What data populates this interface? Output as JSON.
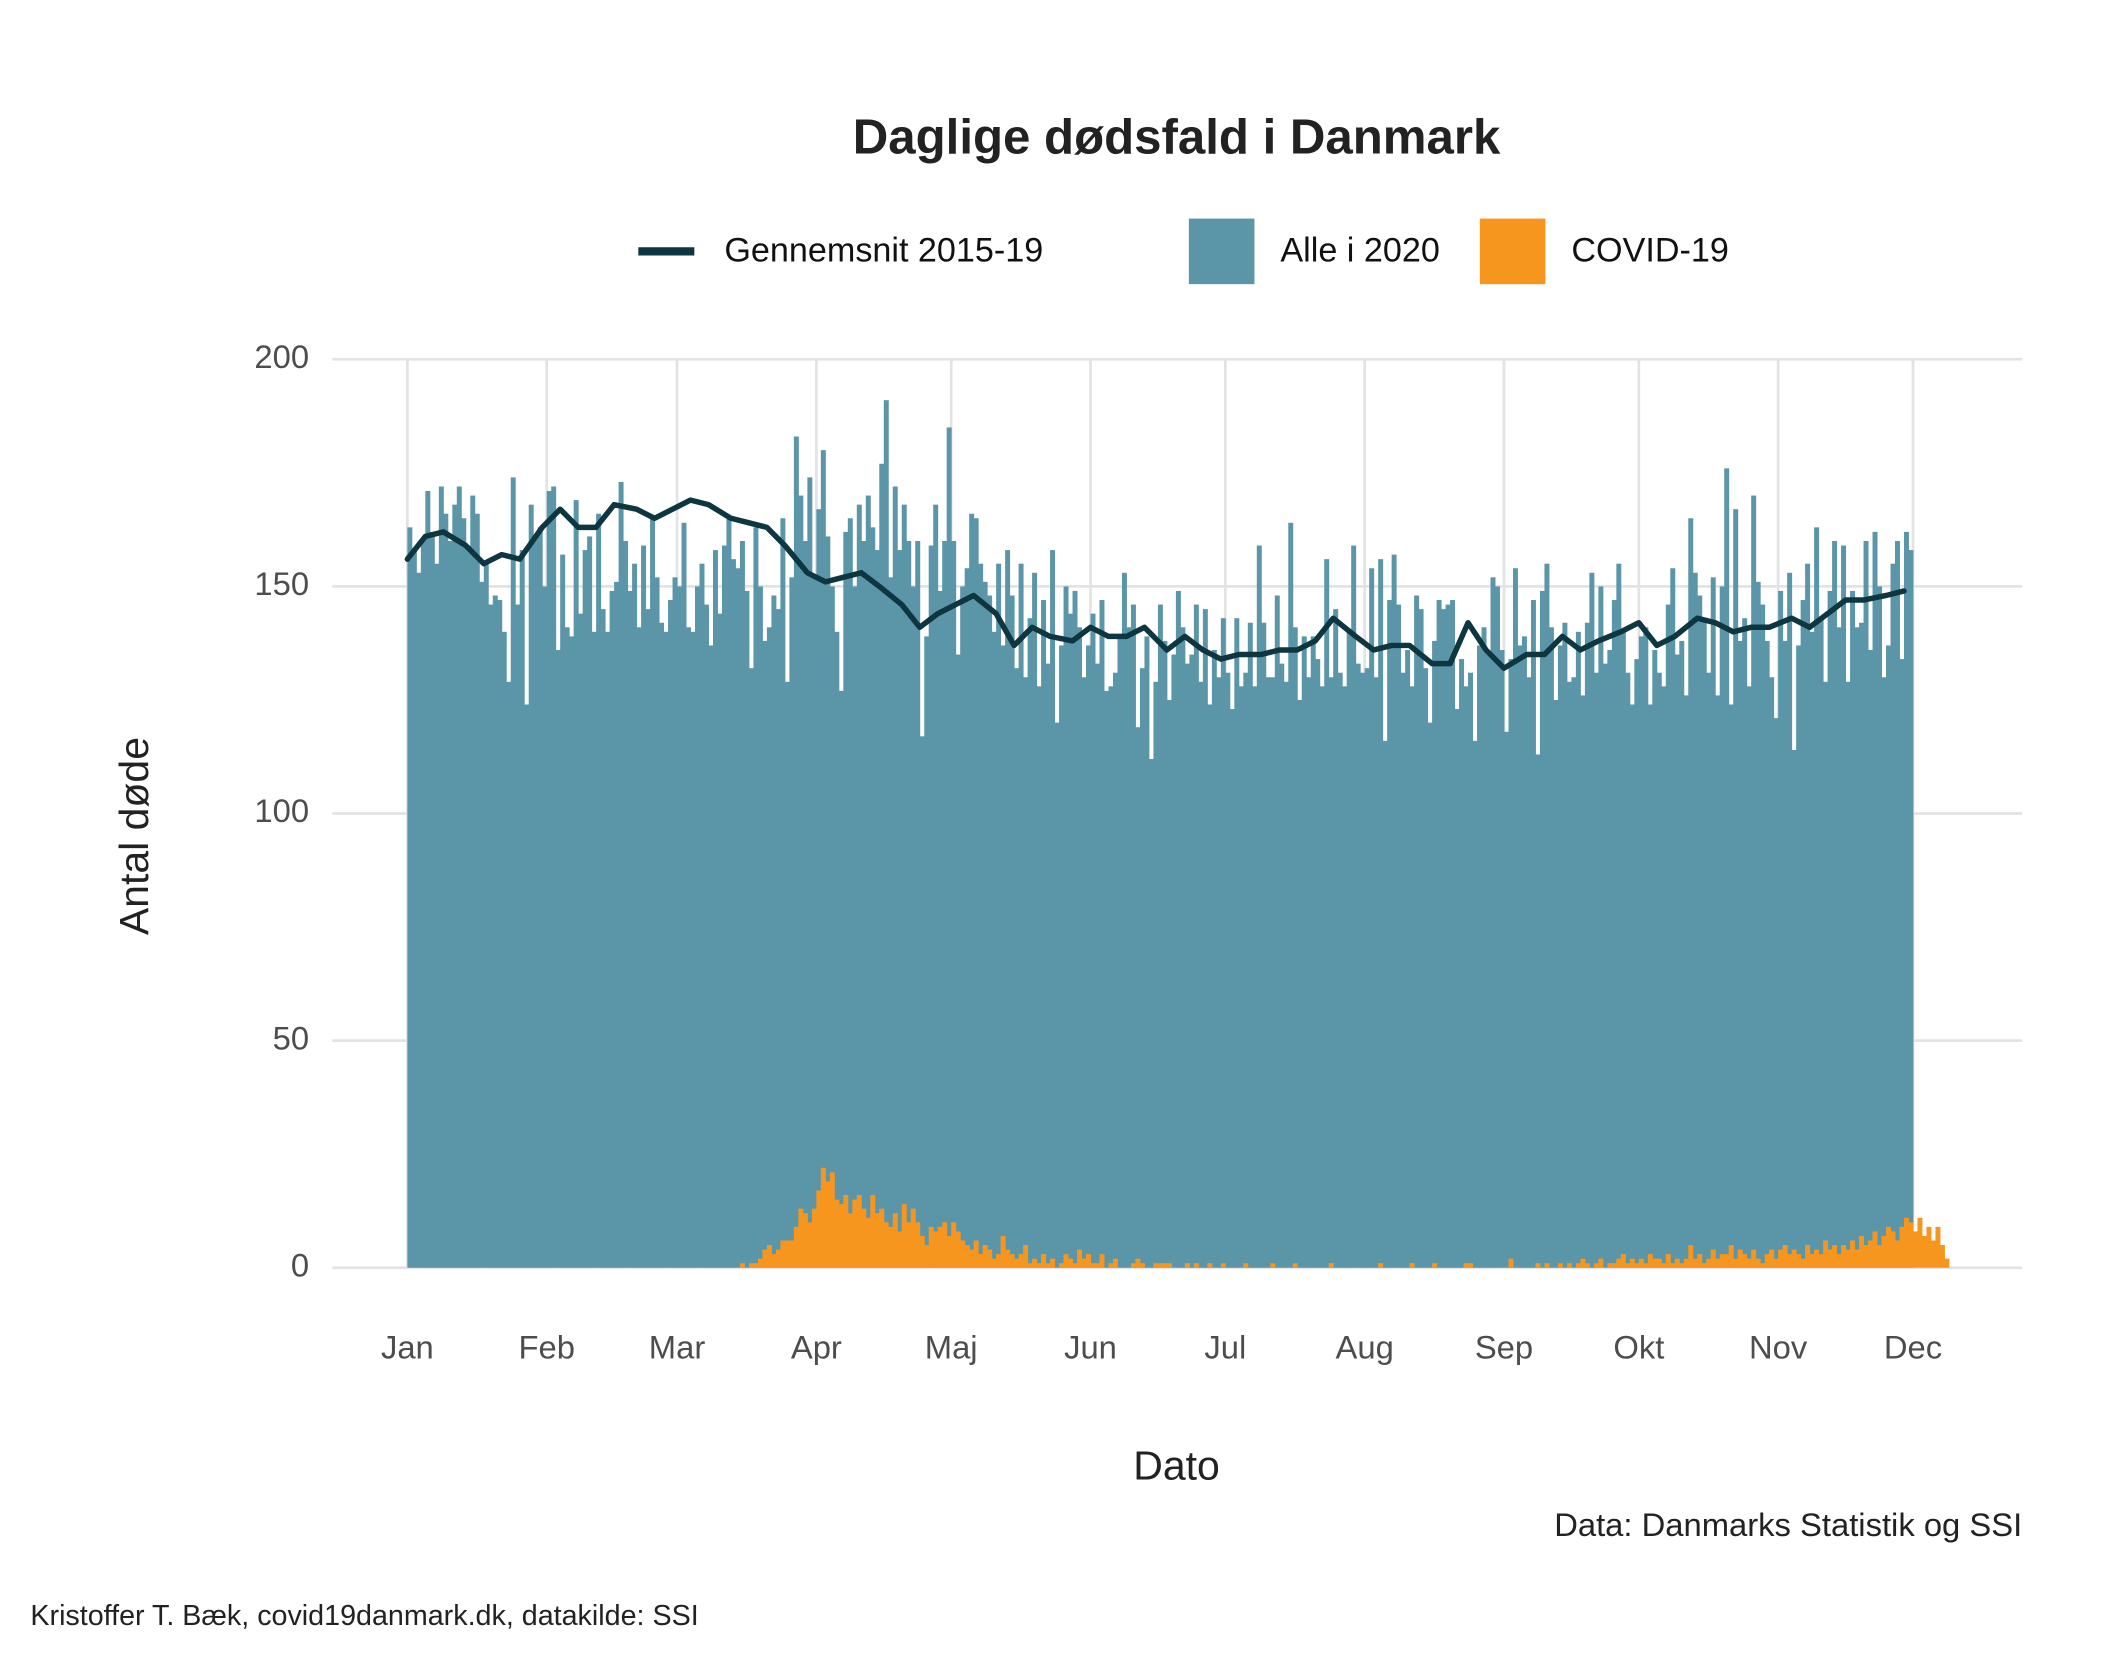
{
  "chart_data": {
    "type": "bar",
    "title": "Daglige dødsfald i Danmark",
    "x_label": "Dato",
    "y_label": "Antal døde",
    "caption": "Data: Danmarks Statistik og SSI",
    "footer": "Kristoffer T. Bæk, covid19danmark.dk, datakilde: SSI",
    "legend": "top",
    "grid": true,
    "xlim": [
      -16.7,
      359.3
    ],
    "ylim": [
      0,
      200
    ],
    "xticks": [
      {
        "value": 0,
        "label": "Jan"
      },
      {
        "value": 31,
        "label": "Feb"
      },
      {
        "value": 60,
        "label": "Mar"
      },
      {
        "value": 91,
        "label": "Apr"
      },
      {
        "value": 121,
        "label": "Maj"
      },
      {
        "value": 152,
        "label": "Jun"
      },
      {
        "value": 182,
        "label": "Jul"
      },
      {
        "value": 213,
        "label": "Aug"
      },
      {
        "value": 244,
        "label": "Sep"
      },
      {
        "value": 274,
        "label": "Okt"
      },
      {
        "value": 305,
        "label": "Nov"
      },
      {
        "value": 335,
        "label": "Dec"
      }
    ],
    "yticks": [
      0,
      50,
      100,
      150,
      200
    ],
    "x": [
      0,
      1,
      2,
      3,
      4,
      5,
      6,
      7,
      8,
      9,
      10,
      11,
      12,
      13,
      14,
      15,
      16,
      17,
      18,
      19,
      20,
      21,
      22,
      23,
      24,
      25,
      26,
      27,
      28,
      29,
      30,
      31,
      32,
      33,
      34,
      35,
      36,
      37,
      38,
      39,
      40,
      41,
      42,
      43,
      44,
      45,
      46,
      47,
      48,
      49,
      50,
      51,
      52,
      53,
      54,
      55,
      56,
      57,
      58,
      59,
      60,
      61,
      62,
      63,
      64,
      65,
      66,
      67,
      68,
      69,
      70,
      71,
      72,
      73,
      74,
      75,
      76,
      77,
      78,
      79,
      80,
      81,
      82,
      83,
      84,
      85,
      86,
      87,
      88,
      89,
      90,
      91,
      92,
      93,
      94,
      95,
      96,
      97,
      98,
      99,
      100,
      101,
      102,
      103,
      104,
      105,
      106,
      107,
      108,
      109,
      110,
      111,
      112,
      113,
      114,
      115,
      116,
      117,
      118,
      119,
      120,
      121,
      122,
      123,
      124,
      125,
      126,
      127,
      128,
      129,
      130,
      131,
      132,
      133,
      134,
      135,
      136,
      137,
      138,
      139,
      140,
      141,
      142,
      143,
      144,
      145,
      146,
      147,
      148,
      149,
      150,
      151,
      152,
      153,
      154,
      155,
      156,
      157,
      158,
      159,
      160,
      161,
      162,
      163,
      164,
      165,
      166,
      167,
      168,
      169,
      170,
      171,
      172,
      173,
      174,
      175,
      176,
      177,
      178,
      179,
      180,
      181,
      182,
      183,
      184,
      185,
      186,
      187,
      188,
      189,
      190,
      191,
      192,
      193,
      194,
      195,
      196,
      197,
      198,
      199,
      200,
      201,
      202,
      203,
      204,
      205,
      206,
      207,
      208,
      209,
      210,
      211,
      212,
      213,
      214,
      215,
      216,
      217,
      218,
      219,
      220,
      221,
      222,
      223,
      224,
      225,
      226,
      227,
      228,
      229,
      230,
      231,
      232,
      233,
      234,
      235,
      236,
      237,
      238,
      239,
      240,
      241,
      242,
      243,
      244,
      245,
      246,
      247,
      248,
      249,
      250,
      251,
      252,
      253,
      254,
      255,
      256,
      257,
      258,
      259,
      260,
      261,
      262,
      263,
      264,
      265,
      266,
      267,
      268,
      269,
      270,
      271,
      272,
      273,
      274,
      275,
      276,
      277,
      278,
      279,
      280,
      281,
      282,
      283,
      284,
      285,
      286,
      287,
      288,
      289,
      290,
      291,
      292,
      293,
      294,
      295,
      296,
      297,
      298,
      299,
      300,
      301,
      302,
      303,
      304,
      305,
      306,
      307,
      308,
      309,
      310,
      311,
      312,
      313,
      314,
      315,
      316,
      317,
      318,
      319,
      320,
      321,
      322,
      323,
      324,
      325,
      326,
      327,
      328,
      329,
      330,
      331,
      332,
      333,
      334,
      335,
      336,
      337,
      338,
      339,
      340,
      341,
      342
    ],
    "series": [
      {
        "name": "Gennemsnit 2015-19",
        "type": "line",
        "color": "#0e3641",
        "x": [
          0,
          4,
          8,
          13,
          17,
          21,
          25,
          30,
          34,
          38,
          42,
          46,
          51,
          55,
          59,
          63,
          67,
          72,
          76,
          80,
          84,
          89,
          93,
          97,
          101,
          105,
          110,
          114,
          118,
          122,
          126,
          131,
          135,
          139,
          143,
          148,
          152,
          156,
          160,
          164,
          169,
          173,
          177,
          181,
          185,
          190,
          194,
          198,
          202,
          206,
          211,
          215,
          219,
          223,
          228,
          232,
          236,
          240,
          244,
          249,
          253,
          257,
          261,
          265,
          270,
          274,
          278,
          282,
          287,
          291,
          295,
          299,
          303,
          308,
          312,
          316,
          320,
          324,
          329,
          333
        ],
        "values": [
          156,
          161,
          162,
          159,
          155,
          157,
          156,
          163,
          167,
          163,
          163,
          168,
          167,
          165,
          167,
          169,
          168,
          165,
          164,
          163,
          159,
          153,
          151,
          152,
          153,
          150,
          146,
          141,
          144,
          146,
          148,
          144,
          137,
          141,
          139,
          138,
          141,
          139,
          139,
          141,
          136,
          139,
          136,
          134,
          135,
          135,
          136,
          136,
          138,
          143,
          139,
          136,
          137,
          137,
          133,
          133,
          142,
          136,
          132,
          135,
          135,
          139,
          136,
          138,
          140,
          142,
          137,
          139,
          143,
          142,
          140,
          141,
          141,
          143,
          141,
          144,
          147,
          147,
          148,
          149
        ]
      },
      {
        "name": "Alle i 2020",
        "type": "bar",
        "color": "#5b96a8",
        "values": [
          163,
          158,
          153,
          160,
          171,
          162,
          155,
          172,
          166,
          160,
          168,
          172,
          165,
          159,
          170,
          166,
          151,
          155,
          146,
          148,
          147,
          140,
          129,
          174,
          146,
          158,
          124,
          168,
          161,
          163,
          150,
          171,
          172,
          136,
          157,
          141,
          139,
          169,
          144,
          158,
          161,
          140,
          166,
          145,
          140,
          149,
          151,
          173,
          160,
          149,
          155,
          141,
          159,
          145,
          165,
          152,
          142,
          140,
          147,
          152,
          150,
          164,
          141,
          140,
          150,
          155,
          146,
          137,
          158,
          144,
          159,
          165,
          156,
          154,
          160,
          149,
          132,
          163,
          150,
          138,
          141,
          148,
          145,
          165,
          129,
          152,
          183,
          170,
          160,
          174,
          152,
          167,
          180,
          161,
          150,
          140,
          127,
          162,
          165,
          150,
          168,
          160,
          170,
          163,
          158,
          177,
          191,
          152,
          172,
          158,
          168,
          160,
          150,
          160,
          117,
          139,
          159,
          168,
          149,
          160,
          185,
          160,
          135,
          150,
          154,
          166,
          165,
          155,
          151,
          148,
          140,
          155,
          137,
          158,
          148,
          132,
          155,
          130,
          143,
          153,
          128,
          147,
          133,
          158,
          120,
          137,
          150,
          144,
          149,
          141,
          130,
          137,
          144,
          133,
          147,
          127,
          128,
          131,
          139,
          153,
          141,
          146,
          119,
          132,
          139,
          112,
          129,
          146,
          138,
          125,
          135,
          149,
          141,
          133,
          135,
          146,
          129,
          145,
          124,
          136,
          130,
          143,
          131,
          123,
          143,
          128,
          131,
          142,
          128,
          159,
          142,
          130,
          130,
          148,
          133,
          129,
          164,
          141,
          125,
          139,
          130,
          139,
          134,
          128,
          156,
          130,
          145,
          131,
          128,
          140,
          159,
          133,
          131,
          132,
          154,
          130,
          156,
          116,
          147,
          157,
          146,
          131,
          136,
          128,
          148,
          145,
          132,
          120,
          138,
          147,
          145,
          146,
          147,
          123,
          134,
          128,
          131,
          116,
          137,
          141,
          135,
          152,
          150,
          136,
          118,
          134,
          154,
          137,
          139,
          130,
          147,
          113,
          149,
          155,
          141,
          125,
          137,
          142,
          129,
          130,
          140,
          126,
          142,
          153,
          131,
          150,
          133,
          136,
          147,
          155,
          140,
          131,
          124,
          134,
          139,
          141,
          124,
          136,
          131,
          128,
          146,
          154,
          135,
          138,
          126,
          165,
          153,
          148,
          143,
          131,
          152,
          126,
          150,
          176,
          124,
          167,
          138,
          143,
          128,
          170,
          151,
          146,
          138,
          130,
          121,
          149,
          138,
          153,
          114,
          137,
          147,
          155,
          140,
          163,
          143,
          129,
          149,
          160,
          141,
          159,
          129,
          149,
          141,
          142,
          160,
          136,
          162,
          150,
          130,
          137,
          155,
          160,
          134,
          162,
          158,
          null,
          null,
          null,
          null,
          null,
          null,
          null,
          null
        ]
      },
      {
        "name": "COVID-19",
        "type": "bar",
        "color": "#f7961f",
        "values": [
          0,
          0,
          0,
          0,
          0,
          0,
          0,
          0,
          0,
          0,
          0,
          0,
          0,
          0,
          0,
          0,
          0,
          0,
          0,
          0,
          0,
          0,
          0,
          0,
          0,
          0,
          0,
          0,
          0,
          0,
          0,
          0,
          0,
          0,
          0,
          0,
          0,
          0,
          0,
          0,
          0,
          0,
          0,
          0,
          0,
          0,
          0,
          0,
          0,
          0,
          0,
          0,
          0,
          0,
          0,
          0,
          0,
          0,
          0,
          0,
          0,
          0,
          0,
          0,
          0,
          0,
          0,
          0,
          0,
          0,
          0,
          0,
          0,
          0,
          1,
          0,
          1,
          1,
          2,
          4,
          5,
          3,
          4,
          6,
          6,
          6,
          9,
          13,
          12,
          10,
          13,
          17,
          22,
          19,
          21,
          15,
          14,
          16,
          12,
          15,
          16,
          13,
          11,
          16,
          12,
          13,
          10,
          9,
          12,
          8,
          14,
          10,
          13,
          10,
          7,
          5,
          9,
          8,
          9,
          10,
          7,
          10,
          8,
          6,
          5,
          4,
          6,
          3,
          5,
          4,
          2,
          3,
          7,
          4,
          3,
          2,
          3,
          5,
          1,
          2,
          1,
          3,
          1,
          2,
          0,
          1,
          3,
          2,
          1,
          4,
          2,
          3,
          1,
          1,
          3,
          0,
          1,
          2,
          0,
          0,
          0,
          1,
          2,
          1,
          0,
          0,
          1,
          1,
          1,
          1,
          0,
          0,
          0,
          1,
          0,
          1,
          0,
          0,
          1,
          0,
          0,
          1,
          0,
          0,
          0,
          0,
          1,
          0,
          0,
          0,
          0,
          0,
          1,
          0,
          0,
          0,
          0,
          1,
          0,
          0,
          0,
          0,
          0,
          0,
          0,
          1,
          0,
          0,
          0,
          0,
          0,
          0,
          0,
          0,
          0,
          0,
          1,
          0,
          0,
          0,
          0,
          0,
          0,
          1,
          0,
          0,
          0,
          0,
          1,
          0,
          0,
          0,
          0,
          0,
          0,
          1,
          1,
          0,
          0,
          0,
          0,
          0,
          0,
          0,
          0,
          2,
          0,
          0,
          0,
          0,
          0,
          1,
          0,
          1,
          0,
          0,
          1,
          0,
          1,
          0,
          1,
          2,
          1,
          0,
          1,
          2,
          0,
          1,
          1,
          2,
          3,
          1,
          2,
          1,
          2,
          1,
          3,
          2,
          2,
          1,
          3,
          1,
          2,
          1,
          2,
          5,
          2,
          3,
          1,
          2,
          4,
          2,
          3,
          3,
          5,
          2,
          4,
          3,
          2,
          4,
          2,
          1,
          3,
          4,
          2,
          4,
          5,
          3,
          4,
          3,
          2,
          5,
          3,
          4,
          3,
          6,
          4,
          5,
          3,
          5,
          4,
          6,
          4,
          7,
          5,
          6,
          8,
          5,
          7,
          9,
          8,
          6,
          9,
          11,
          10,
          8,
          11,
          7,
          9,
          6,
          9,
          5,
          2
        ]
      }
    ]
  }
}
